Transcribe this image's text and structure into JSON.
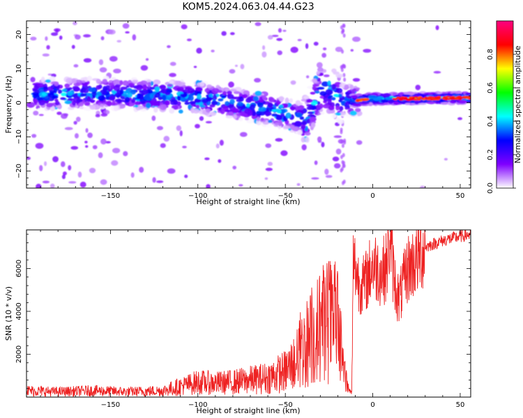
{
  "figure": {
    "title": "KOM5.2024.063.04.44.G23"
  },
  "chart_data": [
    {
      "type": "heatmap",
      "xlabel": "Height of straight line (km)",
      "ylabel": "Frequency (Hz)",
      "xlim": [
        -198,
        56
      ],
      "ylim": [
        -25,
        24
      ],
      "xticks": [
        -150,
        -100,
        -50,
        0,
        50
      ],
      "yticks": [
        -20,
        -10,
        0,
        10,
        20
      ],
      "ridge": {
        "x": [
          -198,
          -150,
          -100,
          -75,
          -50,
          -38,
          -30,
          -22,
          -18,
          -14,
          -10,
          0,
          20,
          56
        ],
        "y": [
          2.5,
          2.8,
          1.5,
          -0.5,
          -3.0,
          -5.0,
          4.0,
          3.0,
          1.0,
          0.8,
          0.6,
          1.2,
          1.2,
          1.5
        ]
      },
      "colorbar": {
        "label": "Normalized spectral amplitude",
        "range": [
          0.0,
          1.0
        ],
        "ticks": [
          0.0,
          0.2,
          0.4,
          0.6,
          0.8
        ],
        "colors": [
          "#ffffff",
          "#7f00ff",
          "#0000ff",
          "#00ffff",
          "#00ff00",
          "#ffff00",
          "#ff0000",
          "#ff0080"
        ]
      }
    },
    {
      "type": "line",
      "xlabel": "Height of straight line (km)",
      "ylabel": "SNR (10 * v/v)",
      "xlim": [
        -198,
        56
      ],
      "ylim": [
        0,
        7800
      ],
      "xticks": [
        -150,
        -100,
        -50,
        0,
        50
      ],
      "yticks": [
        2000,
        4000,
        6000
      ],
      "color": "#ee2222",
      "series": [
        {
          "x": [
            -198,
            -180,
            -160,
            -140,
            -120,
            -110,
            -100,
            -90,
            -80,
            -70,
            -60,
            -50,
            -45,
            -40,
            -35,
            -30,
            -25,
            -20,
            -17,
            -14,
            -12,
            -11,
            -8,
            -5,
            0,
            5,
            8,
            10,
            12,
            15,
            20,
            25,
            30,
            40,
            50,
            56
          ],
          "values": [
            300,
            250,
            300,
            250,
            300,
            500,
            700,
            650,
            700,
            800,
            900,
            1200,
            1600,
            2300,
            2800,
            3200,
            3600,
            3300,
            1400,
            350,
            200,
            6400,
            5400,
            5200,
            6200,
            5800,
            6100,
            7600,
            5600,
            4500,
            6000,
            6400,
            7000,
            7300,
            7500,
            7600
          ]
        }
      ]
    }
  ]
}
